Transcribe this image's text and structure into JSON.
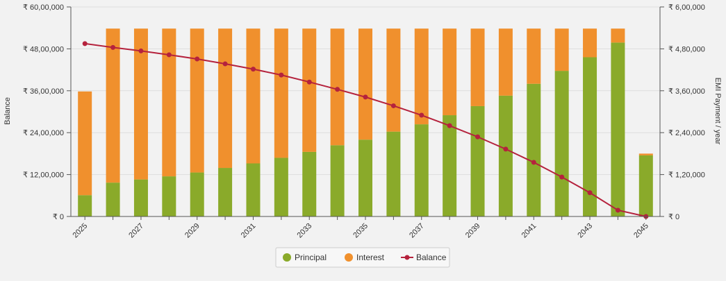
{
  "colors": {
    "principal": "#8aaa2a",
    "interest": "#f0902d",
    "balance": "#b5223d",
    "grid": "#dddddd",
    "axis": "#555555",
    "background": "#f2f2f2"
  },
  "chart_data": {
    "type": "bar",
    "title": "",
    "xlabel": "",
    "ylabel": "Balance",
    "y2label": "EMI Payment / year",
    "stacked": true,
    "categories": [
      "2025",
      "2026",
      "2027",
      "2028",
      "2029",
      "2030",
      "2031",
      "2032",
      "2033",
      "2034",
      "2035",
      "2036",
      "2037",
      "2038",
      "2039",
      "2040",
      "2041",
      "2042",
      "2043",
      "2044",
      "2045"
    ],
    "x_tick_labels": [
      "2025",
      "",
      "2027",
      "",
      "2029",
      "",
      "2031",
      "",
      "2033",
      "",
      "2035",
      "",
      "2037",
      "",
      "2039",
      "",
      "2041",
      "",
      "2043",
      "",
      "2045"
    ],
    "y_ticks": [
      "₹ 0",
      "₹ 12,00,000",
      "₹ 24,00,000",
      "₹ 36,00,000",
      "₹ 48,00,000",
      "₹ 60,00,000"
    ],
    "y2_ticks": [
      "₹ 0",
      "₹ 1,20,000",
      "₹ 2,40,000",
      "₹ 3,60,000",
      "₹ 4,80,000",
      "₹ 6,00,000"
    ],
    "ylim": [
      0,
      6000000
    ],
    "y2lim": [
      0,
      600000
    ],
    "series": [
      {
        "name": "Principal",
        "type": "bar",
        "axis": "right",
        "values": [
          61000,
          97000,
          106000,
          115000,
          126000,
          139000,
          152000,
          168000,
          185000,
          204000,
          220000,
          243000,
          264000,
          290000,
          316000,
          346000,
          380000,
          417000,
          456000,
          498000,
          175000
        ]
      },
      {
        "name": "Interest",
        "type": "bar",
        "axis": "right",
        "values": [
          297000,
          441000,
          432000,
          423000,
          412000,
          399000,
          386000,
          370000,
          353000,
          334000,
          318000,
          295000,
          274000,
          248000,
          222000,
          192000,
          158000,
          121000,
          82000,
          40000,
          5000
        ]
      },
      {
        "name": "Balance",
        "type": "line",
        "axis": "left",
        "values": [
          4950000,
          4840000,
          4740000,
          4630000,
          4510000,
          4370000,
          4220000,
          4050000,
          3850000,
          3640000,
          3420000,
          3170000,
          2900000,
          2600000,
          2280000,
          1930000,
          1550000,
          1130000,
          680000,
          180000,
          0
        ]
      }
    ],
    "legend": {
      "position": "bottom-center",
      "items": [
        "Principal",
        "Interest",
        "Balance"
      ]
    },
    "grid": true
  }
}
